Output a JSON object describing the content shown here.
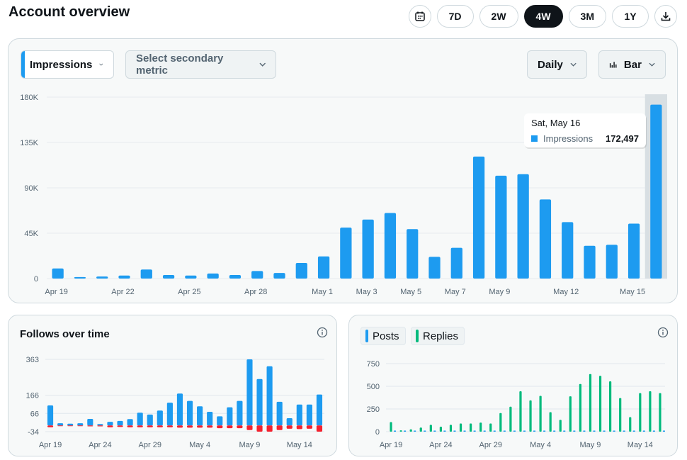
{
  "page": {
    "title": "Account overview"
  },
  "range": {
    "buttons": [
      "7D",
      "2W",
      "4W",
      "3M",
      "1Y"
    ],
    "active": "4W"
  },
  "controls": {
    "primary_metric": "Impressions",
    "secondary_metric": "Select secondary metric",
    "interval": "Daily",
    "chart_type": "Bar"
  },
  "colors": {
    "impressions": "#1d9bf0",
    "unfollows": "#f4212e",
    "replies": "#00ba7c"
  },
  "tooltip": {
    "date": "Sat, May 16",
    "label": "Impressions",
    "value": "172,497"
  },
  "follows_card": {
    "title": "Follows over time"
  },
  "posts_card": {
    "legend_posts": "Posts",
    "legend_replies": "Replies"
  },
  "chart_data": [
    {
      "type": "bar",
      "title": "Impressions",
      "categories": [
        "Apr 19",
        "Apr 20",
        "Apr 21",
        "Apr 22",
        "Apr 23",
        "Apr 24",
        "Apr 25",
        "Apr 26",
        "Apr 27",
        "Apr 28",
        "Apr 29",
        "Apr 30",
        "May 1",
        "May 2",
        "May 3",
        "May 4",
        "May 5",
        "May 6",
        "May 7",
        "May 8",
        "May 9",
        "May 10",
        "May 11",
        "May 12",
        "May 13",
        "May 14",
        "May 15",
        "May 16"
      ],
      "x_tick_labels": [
        "Apr 19",
        "Apr 22",
        "Apr 25",
        "Apr 28",
        "May 1",
        "May 3",
        "May 5",
        "May 7",
        "May 9",
        "May 12",
        "May 15"
      ],
      "series": [
        {
          "name": "Impressions",
          "values": [
            10000,
            1500,
            2000,
            3000,
            9000,
            3500,
            3000,
            5000,
            3500,
            7500,
            5500,
            15500,
            22000,
            50500,
            58500,
            65000,
            49000,
            21500,
            30500,
            121000,
            102000,
            103500,
            78500,
            56000,
            32500,
            33500,
            54500,
            172497
          ]
        }
      ],
      "y_ticks": [
        "0",
        "45K",
        "90K",
        "135K",
        "180K"
      ],
      "ylim": [
        0,
        180000
      ],
      "highlighted": "May 16"
    },
    {
      "type": "bar",
      "title": "Follows over time",
      "categories": [
        "Apr 19",
        "Apr 20",
        "Apr 21",
        "Apr 22",
        "Apr 23",
        "Apr 24",
        "Apr 25",
        "Apr 26",
        "Apr 27",
        "Apr 28",
        "Apr 29",
        "Apr 30",
        "May 1",
        "May 2",
        "May 3",
        "May 4",
        "May 5",
        "May 6",
        "May 7",
        "May 8",
        "May 9",
        "May 10",
        "May 11",
        "May 12",
        "May 13",
        "May 14",
        "May 15",
        "May 16"
      ],
      "x_tick_labels": [
        "Apr 19",
        "Apr 24",
        "Apr 29",
        "May 4",
        "May 9",
        "May 14"
      ],
      "series": [
        {
          "values": [
            110,
            12,
            10,
            12,
            36,
            8,
            20,
            25,
            35,
            70,
            60,
            82,
            125,
            175,
            135,
            105,
            75,
            50,
            100,
            135,
            363,
            255,
            325,
            130,
            40,
            115,
            115,
            170
          ]
        },
        {
          "values": [
            -10,
            -4,
            -4,
            -4,
            -5,
            -5,
            -10,
            -8,
            -10,
            -10,
            -10,
            -10,
            -10,
            -12,
            -12,
            -12,
            -12,
            -15,
            -15,
            -15,
            -25,
            -34,
            -34,
            -25,
            -18,
            -20,
            -18,
            -34
          ]
        }
      ],
      "y_ticks": [
        "-34",
        "66",
        "166",
        "363"
      ],
      "ylim": [
        -34,
        363
      ]
    },
    {
      "type": "bar",
      "categories": [
        "Apr 19",
        "Apr 20",
        "Apr 21",
        "Apr 22",
        "Apr 23",
        "Apr 24",
        "Apr 25",
        "Apr 26",
        "Apr 27",
        "Apr 28",
        "Apr 29",
        "Apr 30",
        "May 1",
        "May 2",
        "May 3",
        "May 4",
        "May 5",
        "May 6",
        "May 7",
        "May 8",
        "May 9",
        "May 10",
        "May 11",
        "May 12",
        "May 13",
        "May 14",
        "May 15",
        "May 16"
      ],
      "x_tick_labels": [
        "Apr 19",
        "Apr 24",
        "Apr 29",
        "May 4",
        "May 9",
        "May 14"
      ],
      "series": [
        {
          "name": "Posts",
          "values": [
            0,
            0,
            0,
            0,
            0,
            0,
            0,
            0,
            0,
            0,
            0,
            0,
            0,
            0,
            0,
            0,
            0,
            0,
            0,
            0,
            0,
            0,
            0,
            0,
            0,
            0,
            0,
            0
          ]
        },
        {
          "name": "Replies",
          "values": [
            105,
            15,
            25,
            45,
            75,
            55,
            75,
            90,
            90,
            100,
            90,
            205,
            275,
            445,
            345,
            395,
            215,
            130,
            390,
            525,
            635,
            615,
            555,
            370,
            160,
            425,
            445,
            425
          ]
        }
      ],
      "y_ticks": [
        "0",
        "250",
        "500",
        "750"
      ],
      "ylim": [
        0,
        750
      ]
    }
  ]
}
